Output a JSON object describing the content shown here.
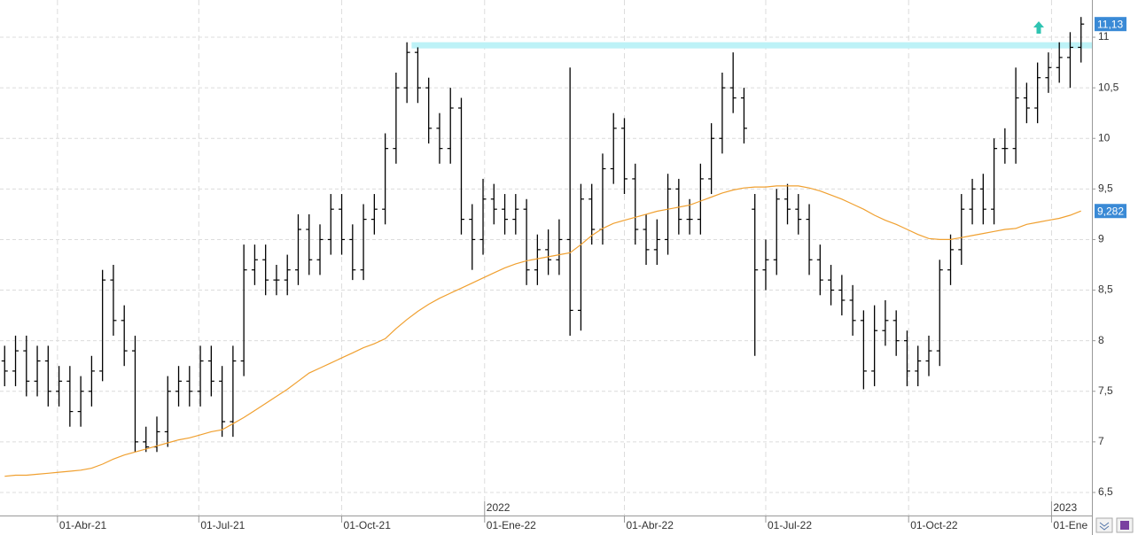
{
  "chart_data": {
    "type": "ohlc",
    "x": [
      "2021-02-26",
      "2021-03-05",
      "2021-03-12",
      "2021-03-19",
      "2021-03-26",
      "2021-04-02",
      "2021-04-09",
      "2021-04-16",
      "2021-04-23",
      "2021-04-30",
      "2021-05-07",
      "2021-05-14",
      "2021-05-21",
      "2021-05-28",
      "2021-06-04",
      "2021-06-11",
      "2021-06-18",
      "2021-06-25",
      "2021-07-02",
      "2021-07-09",
      "2021-07-16",
      "2021-07-23",
      "2021-07-30",
      "2021-08-06",
      "2021-08-13",
      "2021-08-20",
      "2021-08-27",
      "2021-09-03",
      "2021-09-10",
      "2021-09-17",
      "2021-09-24",
      "2021-10-01",
      "2021-10-08",
      "2021-10-15",
      "2021-10-22",
      "2021-10-29",
      "2021-11-05",
      "2021-11-12",
      "2021-11-19",
      "2021-11-26",
      "2021-12-03",
      "2021-12-10",
      "2021-12-17",
      "2021-12-24",
      "2021-12-31",
      "2022-01-07",
      "2022-01-14",
      "2022-01-21",
      "2022-01-28",
      "2022-02-04",
      "2022-02-11",
      "2022-02-18",
      "2022-02-25",
      "2022-03-04",
      "2022-03-11",
      "2022-03-18",
      "2022-03-25",
      "2022-04-01",
      "2022-04-08",
      "2022-04-15",
      "2022-04-22",
      "2022-04-29",
      "2022-05-06",
      "2022-05-13",
      "2022-05-20",
      "2022-05-27",
      "2022-06-03",
      "2022-06-10",
      "2022-06-17",
      "2022-06-24",
      "2022-07-01",
      "2022-07-08",
      "2022-07-15",
      "2022-07-22",
      "2022-07-29",
      "2022-08-05",
      "2022-08-12",
      "2022-08-19",
      "2022-08-26",
      "2022-09-02",
      "2022-09-09",
      "2022-09-16",
      "2022-09-23",
      "2022-09-30",
      "2022-10-07",
      "2022-10-14",
      "2022-10-21",
      "2022-10-28",
      "2022-11-04",
      "2022-11-11",
      "2022-11-18",
      "2022-11-25",
      "2022-12-02",
      "2022-12-09",
      "2022-12-16",
      "2022-12-23",
      "2022-12-30",
      "2023-01-06",
      "2023-01-13",
      "2023-01-20"
    ],
    "open": [
      7.8,
      7.7,
      7.9,
      7.6,
      7.8,
      7.5,
      7.6,
      7.3,
      7.5,
      7.7,
      8.6,
      8.2,
      7.9,
      7.0,
      6.95,
      7.1,
      7.5,
      7.6,
      7.5,
      7.8,
      7.6,
      7.2,
      7.8,
      8.7,
      8.8,
      8.6,
      8.6,
      8.7,
      9.1,
      8.8,
      9.0,
      9.3,
      9.0,
      8.7,
      9.2,
      9.3,
      9.9,
      10.5,
      10.85,
      10.5,
      10.1,
      9.9,
      10.3,
      9.2,
      9.0,
      9.4,
      9.3,
      9.2,
      9.3,
      8.7,
      8.9,
      8.8,
      9.0,
      8.3,
      9.4,
      9.1,
      9.7,
      10.1,
      9.6,
      9.1,
      8.9,
      9.0,
      9.5,
      9.2,
      9.2,
      9.6,
      10.0,
      10.5,
      10.4,
      9.3,
      8.7,
      8.8,
      9.4,
      9.3,
      9.2,
      8.8,
      8.6,
      8.5,
      8.4,
      8.2,
      7.7,
      8.1,
      8.2,
      8.0,
      7.7,
      7.8,
      7.9,
      8.7,
      8.9,
      9.3,
      9.5,
      9.3,
      9.9,
      9.9,
      10.4,
      10.3,
      10.6,
      10.7,
      10.8,
      10.9
    ],
    "high": [
      7.95,
      8.05,
      8.05,
      7.95,
      7.95,
      7.75,
      7.75,
      7.65,
      7.85,
      8.7,
      8.75,
      8.35,
      8.05,
      7.15,
      7.25,
      7.65,
      7.75,
      7.75,
      7.95,
      7.95,
      7.75,
      7.95,
      8.95,
      8.95,
      8.95,
      8.75,
      8.85,
      9.25,
      9.25,
      9.15,
      9.45,
      9.45,
      9.15,
      9.35,
      9.45,
      10.05,
      10.65,
      10.95,
      10.9,
      10.6,
      10.25,
      10.5,
      10.4,
      9.35,
      9.6,
      9.55,
      9.45,
      9.45,
      9.4,
      9.05,
      9.1,
      9.2,
      10.7,
      9.55,
      9.55,
      9.85,
      10.25,
      10.2,
      9.75,
      9.25,
      9.2,
      9.65,
      9.6,
      9.4,
      9.75,
      10.15,
      10.65,
      10.85,
      10.5,
      9.45,
      9.0,
      9.5,
      9.55,
      9.45,
      9.35,
      8.95,
      8.75,
      8.65,
      8.55,
      8.3,
      8.35,
      8.4,
      8.3,
      8.1,
      7.95,
      8.05,
      8.8,
      9.05,
      9.45,
      9.6,
      9.65,
      10.0,
      10.1,
      10.7,
      10.55,
      10.75,
      10.85,
      10.95,
      11.05,
      11.2
    ],
    "low": [
      7.55,
      7.55,
      7.45,
      7.45,
      7.35,
      7.35,
      7.15,
      7.15,
      7.35,
      7.6,
      8.05,
      7.75,
      6.9,
      6.9,
      6.9,
      6.95,
      7.35,
      7.35,
      7.35,
      7.45,
      7.05,
      7.05,
      7.65,
      8.55,
      8.45,
      8.45,
      8.45,
      8.55,
      8.65,
      8.65,
      8.85,
      8.85,
      8.6,
      8.6,
      9.05,
      9.15,
      9.75,
      10.35,
      10.35,
      9.95,
      9.75,
      9.75,
      9.05,
      8.7,
      8.85,
      9.15,
      9.05,
      9.05,
      8.55,
      8.55,
      8.65,
      8.65,
      8.05,
      8.1,
      8.95,
      8.95,
      9.55,
      9.45,
      8.95,
      8.75,
      8.75,
      8.85,
      9.05,
      9.05,
      9.05,
      9.45,
      9.85,
      10.25,
      9.95,
      7.85,
      8.5,
      8.65,
      9.15,
      9.05,
      8.65,
      8.45,
      8.35,
      8.25,
      8.05,
      7.52,
      7.55,
      7.95,
      7.85,
      7.55,
      7.55,
      7.65,
      7.75,
      8.55,
      8.75,
      9.15,
      9.15,
      9.15,
      9.75,
      9.75,
      10.15,
      10.15,
      10.45,
      10.55,
      10.5,
      10.75
    ],
    "close": [
      7.7,
      7.9,
      7.6,
      7.8,
      7.5,
      7.6,
      7.3,
      7.5,
      7.7,
      8.6,
      8.2,
      7.9,
      7.0,
      6.95,
      7.1,
      7.5,
      7.6,
      7.5,
      7.8,
      7.6,
      7.2,
      7.8,
      8.7,
      8.8,
      8.6,
      8.6,
      8.7,
      9.1,
      8.8,
      9.0,
      9.3,
      9.0,
      8.7,
      9.2,
      9.3,
      9.9,
      10.5,
      10.85,
      10.5,
      10.1,
      9.9,
      10.3,
      9.2,
      9.0,
      9.4,
      9.3,
      9.2,
      9.3,
      8.7,
      8.9,
      8.8,
      9.0,
      8.3,
      9.4,
      9.1,
      9.7,
      10.1,
      9.6,
      9.1,
      8.9,
      9.0,
      9.5,
      9.2,
      9.2,
      9.6,
      10.0,
      10.5,
      10.4,
      10.1,
      8.7,
      8.8,
      9.4,
      9.3,
      9.2,
      8.8,
      8.6,
      8.5,
      8.4,
      8.2,
      7.7,
      8.1,
      8.2,
      8.0,
      7.7,
      7.8,
      7.9,
      8.7,
      8.9,
      9.3,
      9.5,
      9.3,
      9.9,
      9.9,
      10.4,
      10.3,
      10.6,
      10.7,
      10.8,
      10.9,
      11.13
    ],
    "color": "#000000",
    "moving_average": {
      "color": "#f0a030",
      "values": [
        6.66,
        6.67,
        6.67,
        6.68,
        6.69,
        6.7,
        6.71,
        6.72,
        6.74,
        6.78,
        6.83,
        6.87,
        6.9,
        6.93,
        6.96,
        6.99,
        7.02,
        7.04,
        7.07,
        7.1,
        7.12,
        7.18,
        7.24,
        7.31,
        7.38,
        7.45,
        7.52,
        7.6,
        7.68,
        7.73,
        7.78,
        7.83,
        7.88,
        7.93,
        7.97,
        8.02,
        8.12,
        8.21,
        8.29,
        8.36,
        8.42,
        8.47,
        8.52,
        8.57,
        8.62,
        8.67,
        8.72,
        8.76,
        8.79,
        8.81,
        8.83,
        8.85,
        8.87,
        8.95,
        9.04,
        9.11,
        9.16,
        9.19,
        9.22,
        9.25,
        9.28,
        9.3,
        9.32,
        9.34,
        9.38,
        9.42,
        9.46,
        9.49,
        9.51,
        9.52,
        9.52,
        9.53,
        9.53,
        9.53,
        9.51,
        9.48,
        9.44,
        9.4,
        9.35,
        9.3,
        9.24,
        9.19,
        9.15,
        9.1,
        9.05,
        9.01,
        9.0,
        9.0,
        9.02,
        9.04,
        9.06,
        9.08,
        9.1,
        9.11,
        9.15,
        9.17,
        9.19,
        9.21,
        9.24,
        9.282
      ]
    },
    "resistance": {
      "start": "2021-11-15",
      "value": 10.92,
      "color": "#bdf2f7"
    },
    "markers": [
      {
        "value": 11.13,
        "label": "11,13",
        "color": "#3a8ad6"
      },
      {
        "value": 9.282,
        "label": "9,282",
        "color": "#3a8ad6"
      }
    ],
    "xlim": [
      "2021-02-23",
      "2023-01-27"
    ],
    "xticks": [
      {
        "value": "2021-04-01",
        "label": "01-Abr-21"
      },
      {
        "value": "2021-07-01",
        "label": "01-Jul-21"
      },
      {
        "value": "2021-10-01",
        "label": "01-Oct-21"
      },
      {
        "value": "2022-01-01",
        "label": "01-Ene-22"
      },
      {
        "value": "2022-04-01",
        "label": "01-Abr-22"
      },
      {
        "value": "2022-07-01",
        "label": "01-Jul-22"
      },
      {
        "value": "2022-10-01",
        "label": "01-Oct-22"
      },
      {
        "value": "2023-01-01",
        "label": "01-Ene"
      }
    ],
    "year_ticks": [
      {
        "value": "2022-01-01",
        "label": "2022"
      },
      {
        "value": "2023-01-01",
        "label": "2023"
      }
    ],
    "ylim": [
      6.272,
      11.368
    ],
    "yticks": [
      {
        "value": 6.5,
        "label": "6,5"
      },
      7,
      {
        "value": 7.5,
        "label": "7,5"
      },
      8,
      {
        "value": 8.5,
        "label": "8,5"
      },
      9,
      {
        "value": 9.5,
        "label": "9,5"
      },
      10,
      {
        "value": 10.5,
        "label": "10,5"
      },
      11
    ],
    "grid": true
  }
}
